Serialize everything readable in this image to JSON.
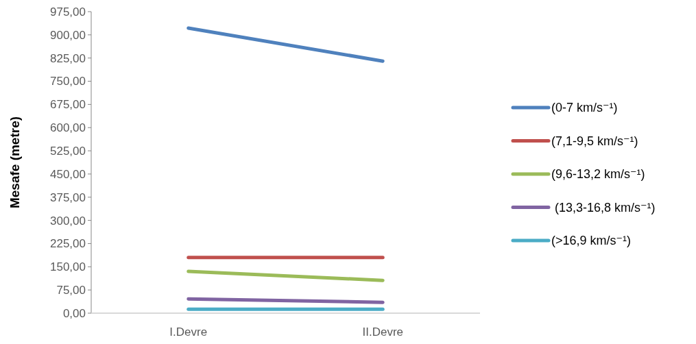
{
  "chart_data": {
    "type": "line",
    "ylabel": "Mesafe (metre)",
    "categories": [
      "I.Devre",
      "II.Devre"
    ],
    "ylim": [
      0,
      975
    ],
    "yticks": [
      {
        "value": 0,
        "label": "0,00"
      },
      {
        "value": 75,
        "label": "75,00"
      },
      {
        "value": 150,
        "label": "150,00"
      },
      {
        "value": 225,
        "label": "225,00"
      },
      {
        "value": 300,
        "label": "300,00"
      },
      {
        "value": 375,
        "label": "375,00"
      },
      {
        "value": 450,
        "label": "450,00"
      },
      {
        "value": 525,
        "label": "525,00"
      },
      {
        "value": 600,
        "label": "600,00"
      },
      {
        "value": 675,
        "label": "675,00"
      },
      {
        "value": 750,
        "label": "750,00"
      },
      {
        "value": 825,
        "label": "825,00"
      },
      {
        "value": 900,
        "label": "900,00"
      },
      {
        "value": 975,
        "label": "975,00"
      }
    ],
    "grid": false,
    "legend": "right",
    "marker": "none",
    "line_style": "solid",
    "series": [
      {
        "name": "(0-7 km/s⁻¹)",
        "color": "#4f81bd",
        "values": [
          922,
          815
        ]
      },
      {
        "name": "(7,1-9,5 km/s⁻¹)",
        "color": "#c0504d",
        "values": [
          180,
          180
        ]
      },
      {
        "name": "(9,6-13,2 km/s⁻¹)",
        "color": "#9bbb59",
        "values": [
          135,
          106
        ]
      },
      {
        "name": " (13,3-16,8 km/s⁻¹)",
        "color": "#8064a2",
        "values": [
          46,
          35
        ]
      },
      {
        "name": "(>16,9 km/s⁻¹)",
        "color": "#4bacc6",
        "values": [
          13,
          13
        ]
      }
    ]
  }
}
